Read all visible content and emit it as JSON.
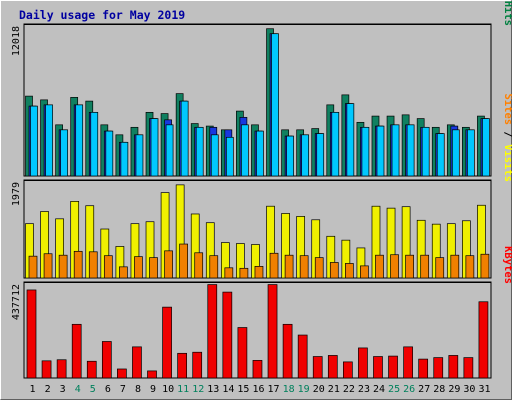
{
  "chart_data": {
    "type": "bar",
    "title": "Daily usage for May 2019",
    "categories": [
      "1",
      "2",
      "3",
      "4",
      "5",
      "6",
      "7",
      "8",
      "9",
      "10",
      "11",
      "12",
      "13",
      "14",
      "15",
      "16",
      "17",
      "18",
      "19",
      "20",
      "21",
      "22",
      "23",
      "24",
      "25",
      "26",
      "27",
      "28",
      "29",
      "30",
      "31"
    ],
    "weekend_days": [
      "4",
      "5",
      "11",
      "12",
      "18",
      "19",
      "25",
      "26"
    ],
    "panels": [
      {
        "id": "hits-files-pages",
        "max_label": "12018",
        "ylim": [
          0,
          12018
        ],
        "legend": [
          {
            "label": "Pages",
            "color": "#00c0ff"
          },
          {
            "label": "Files",
            "color": "#0040ff"
          },
          {
            "label": "Hits",
            "color": "#008040"
          }
        ],
        "series": [
          {
            "name": "Hits",
            "color": "#108060",
            "values": [
              6400,
              6100,
              4100,
              6300,
              6000,
              4100,
              3300,
              3900,
              5100,
              5000,
              6600,
              4200,
              4000,
              3700,
              5200,
              4100,
              11800,
              3700,
              3700,
              3800,
              5700,
              6500,
              4300,
              4800,
              4800,
              4900,
              4600,
              3900,
              4100,
              3900,
              4800
            ]
          },
          {
            "name": "Files",
            "color": "#1838e0",
            "values": [
              5600,
              5700,
              3700,
              5700,
              5100,
              3600,
              2700,
              3300,
              4600,
              4500,
              6000,
              3900,
              3900,
              3700,
              4700,
              3600,
              11400,
              3200,
              3300,
              3400,
              5100,
              5800,
              3900,
              4000,
              4100,
              4100,
              3900,
              3400,
              4000,
              3700,
              4600
            ]
          },
          {
            "name": "Pages",
            "color": "#00c8ff",
            "values": [
              5600,
              5700,
              3700,
              5700,
              5100,
              3600,
              2700,
              3300,
              4600,
              4100,
              6000,
              3900,
              3300,
              3100,
              4100,
              3600,
              11400,
              3200,
              3300,
              3400,
              5100,
              5800,
              3900,
              4000,
              4100,
              4100,
              3900,
              3400,
              3700,
              3700,
              4600
            ]
          }
        ]
      },
      {
        "id": "visits-sites",
        "max_label": "1979",
        "ylim": [
          0,
          1979
        ],
        "legend": [
          {
            "label": "Sites",
            "color": "#ff8000"
          },
          {
            "label": "Visits",
            "color": "#ffff00"
          }
        ],
        "series": [
          {
            "name": "Visits",
            "color": "#f0f000",
            "values": [
              1120,
              1370,
              1220,
              1580,
              1490,
              1010,
              650,
              1120,
              1160,
              1760,
              1920,
              1320,
              1140,
              730,
              710,
              690,
              1480,
              1330,
              1270,
              1200,
              860,
              780,
              620,
              1480,
              1440,
              1470,
              1190,
              1110,
              1120,
              1180,
              1500
            ]
          },
          {
            "name": "Sites",
            "color": "#f08000",
            "values": [
              450,
              500,
              470,
              550,
              540,
              460,
              230,
              440,
              420,
              560,
              700,
              520,
              460,
              210,
              200,
              240,
              510,
              470,
              460,
              420,
              320,
              300,
              250,
              470,
              480,
              470,
              470,
              420,
              470,
              460,
              490
            ]
          }
        ]
      },
      {
        "id": "kbytes",
        "max_label": "437712",
        "ylim": [
          0,
          437712
        ],
        "legend": [
          {
            "label": "KBytes",
            "color": "#ff0000"
          }
        ],
        "series": [
          {
            "name": "KBytes",
            "color": "#f00000",
            "values": [
              410000,
              80000,
              85000,
              250000,
              78000,
              170000,
              42000,
              145000,
              33000,
              330000,
              115000,
              120000,
              435000,
              400000,
              235000,
              82000,
              435000,
              250000,
              200000,
              100000,
              105000,
              75000,
              140000,
              100000,
              102000,
              145000,
              88000,
              95000,
              105000,
              95000,
              355000
            ]
          }
        ]
      }
    ]
  }
}
